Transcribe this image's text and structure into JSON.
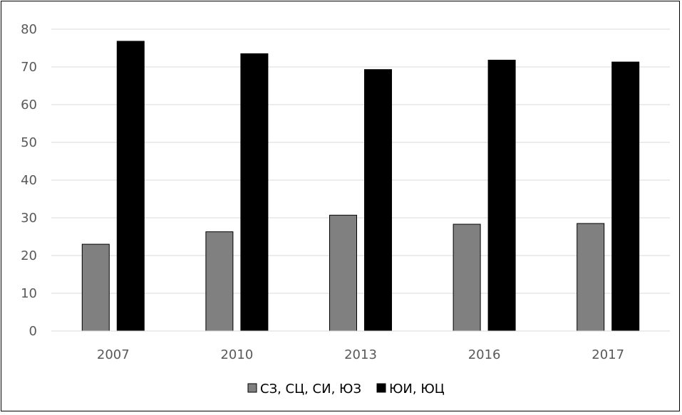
{
  "chart_data": {
    "type": "bar",
    "title": "",
    "xlabel": "",
    "ylabel": "",
    "categories": [
      "2007",
      "2010",
      "2013",
      "2016",
      "2017"
    ],
    "series": [
      {
        "name": "СЗ, СЦ, СИ, ЮЗ",
        "values": [
          23,
          26.3,
          30.7,
          28.3,
          28.5
        ],
        "color": "#808080"
      },
      {
        "name": "ЮИ, ЮЦ",
        "values": [
          76.8,
          73.5,
          69.3,
          71.8,
          71.3
        ],
        "color": "#000000"
      }
    ],
    "ylim": [
      0,
      80
    ],
    "yticks": [
      0,
      10,
      20,
      30,
      40,
      50,
      60,
      70,
      80
    ],
    "grid": true,
    "legend": "bottom"
  }
}
